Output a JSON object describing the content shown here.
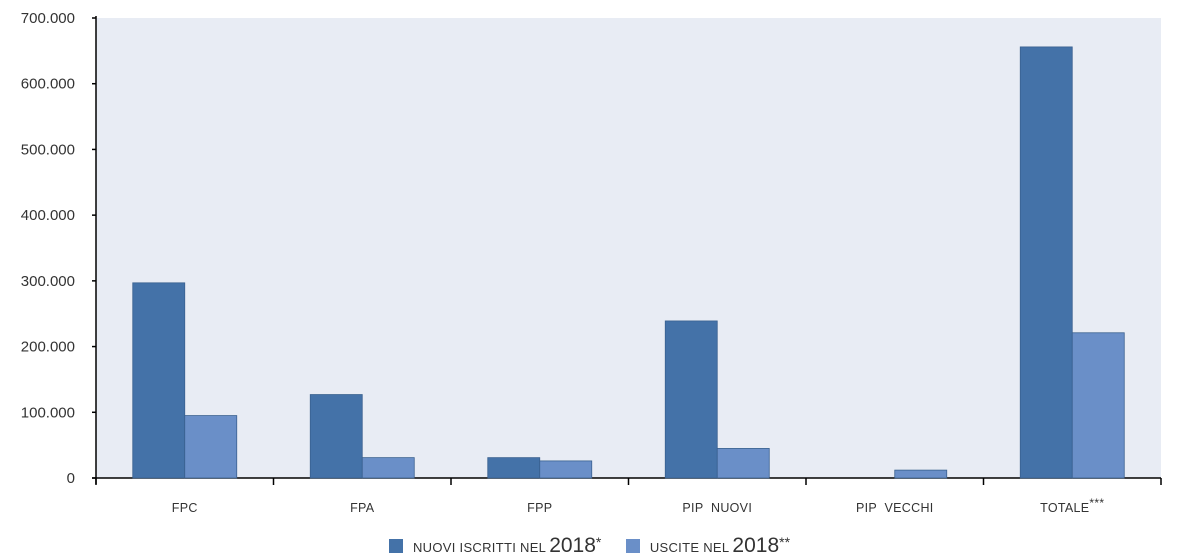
{
  "chart_data": {
    "type": "bar",
    "categories": [
      "FPC",
      "FPA",
      "FPP",
      "PIP NUOVI",
      "PIP VECCHI",
      "TOTALE"
    ],
    "category_suffix": [
      "",
      "",
      "",
      "",
      "",
      "***"
    ],
    "series": [
      {
        "name": "NUOVI ISCRITTI NEL 2018",
        "name_suffix": "*",
        "color": "#4472a8",
        "values": [
          297000,
          127000,
          31000,
          239000,
          0,
          656000
        ]
      },
      {
        "name": "USCITE NEL 2018",
        "name_suffix": "**",
        "color": "#6a8fc8",
        "values": [
          95000,
          31000,
          26000,
          45000,
          12000,
          221000
        ]
      }
    ],
    "yticks": [
      "0",
      "100.000",
      "200.000",
      "300.000",
      "400.000",
      "500.000",
      "600.000",
      "700.000"
    ],
    "ylim": [
      0,
      700000
    ],
    "xlabel": "",
    "ylabel": "",
    "title": "",
    "legend_position": "bottom",
    "plot_background": "#e8ecf4"
  },
  "legend": {
    "item1_main": "NUOVI ISCRITTI NEL",
    "item1_year": "2018",
    "item1_sup": "*",
    "item2_main": "USCITE NEL",
    "item2_year": "2018",
    "item2_sup": "**"
  }
}
